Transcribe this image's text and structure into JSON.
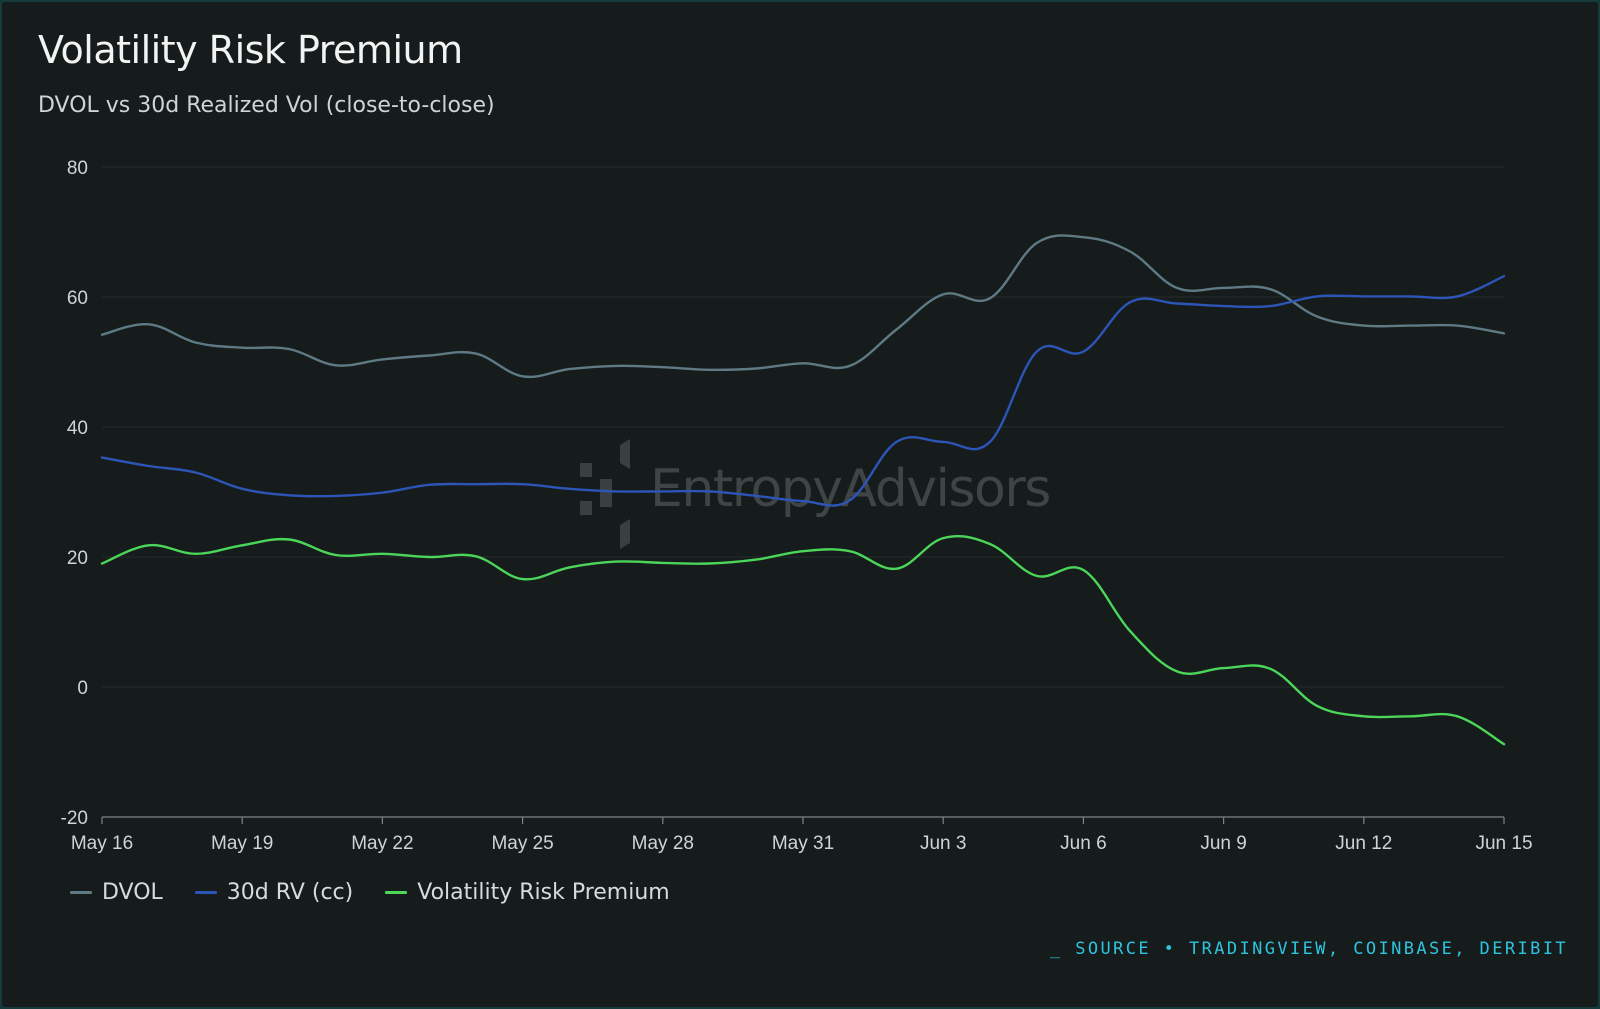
{
  "header": {
    "title": "Volatility Risk Premium",
    "subtitle": "DVOL vs 30d Realized Vol (close-to-close)"
  },
  "watermark": {
    "brand_prefix": "Entropy",
    "brand_suffix": "Advisors"
  },
  "footer": {
    "source": "_ SOURCE • TRADINGVIEW, COINBASE, DERIBIT"
  },
  "colors": {
    "background": "#161b1b",
    "dvol": "#5e7a84",
    "rv": "#2d55b8",
    "vrp": "#4bd65a",
    "grid": "#262d2d",
    "accent": "#2cc4de"
  },
  "chart_data": {
    "type": "line",
    "title": "Volatility Risk Premium",
    "subtitle": "DVOL vs 30d Realized Vol (close-to-close)",
    "xlabel": "",
    "ylabel": "",
    "ylim": [
      -20,
      80
    ],
    "yticks": [
      -20,
      0,
      20,
      40,
      60,
      80
    ],
    "x": [
      "May 16",
      "May 17",
      "May 18",
      "May 19",
      "May 20",
      "May 21",
      "May 22",
      "May 23",
      "May 24",
      "May 25",
      "May 26",
      "May 27",
      "May 28",
      "May 29",
      "May 30",
      "May 31",
      "Jun 1",
      "Jun 2",
      "Jun 3",
      "Jun 4",
      "Jun 5",
      "Jun 6",
      "Jun 7",
      "Jun 8",
      "Jun 9",
      "Jun 10",
      "Jun 11",
      "Jun 12",
      "Jun 13",
      "Jun 14",
      "Jun 15"
    ],
    "xtick_labels": [
      "May 16",
      "May 19",
      "May 22",
      "May 25",
      "May 28",
      "May 31",
      "Jun 3",
      "Jun 6",
      "Jun 9",
      "Jun 12",
      "Jun 15"
    ],
    "grid": true,
    "legend": "bottom-left",
    "series": [
      {
        "name": "DVOL",
        "color": "#5e7a84",
        "values": [
          54.2,
          55.8,
          53.0,
          52.2,
          52.0,
          49.5,
          50.4,
          51.0,
          51.3,
          47.8,
          48.9,
          49.4,
          49.2,
          48.8,
          49.0,
          49.8,
          49.4,
          55.0,
          60.4,
          59.8,
          68.3,
          69.2,
          67.0,
          61.4,
          61.4,
          61.2,
          57.0,
          55.6,
          55.6,
          55.6,
          54.4
        ]
      },
      {
        "name": "30d RV (cc)",
        "color": "#2d55b8",
        "values": [
          35.3,
          34.0,
          33.0,
          30.5,
          29.5,
          29.4,
          29.9,
          31.1,
          31.2,
          31.2,
          30.5,
          30.1,
          30.1,
          30.1,
          29.4,
          28.6,
          28.7,
          37.7,
          37.7,
          37.7,
          51.6,
          51.6,
          59.2,
          59.0,
          58.6,
          58.6,
          60.1,
          60.1,
          60.1,
          60.1,
          63.2
        ]
      },
      {
        "name": "Volatility Risk Premium",
        "color": "#4bd65a",
        "values": [
          19.0,
          21.8,
          20.5,
          21.8,
          22.7,
          20.3,
          20.5,
          20.0,
          20.1,
          16.6,
          18.4,
          19.3,
          19.1,
          19.0,
          19.6,
          20.9,
          20.9,
          18.2,
          22.9,
          22.0,
          17.1,
          18.0,
          8.6,
          2.4,
          2.9,
          2.8,
          -2.9,
          -4.5,
          -4.5,
          -4.5,
          -8.8
        ]
      }
    ]
  }
}
